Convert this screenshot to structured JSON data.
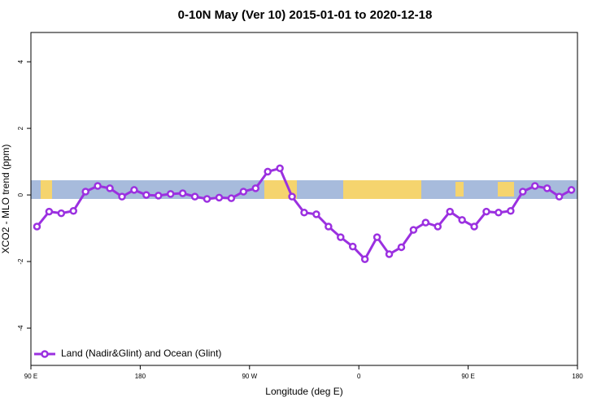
{
  "chart_data": {
    "type": "line",
    "title": "0-10N May (Ver 10)   2015-01-01 to 2020-12-18",
    "x_label": "Longitude (deg E)",
    "y_label": "XCO2 - MLO trend (ppm)",
    "x": [
      95,
      105,
      115,
      125,
      135,
      145,
      155,
      165,
      175,
      185,
      195,
      205,
      215,
      225,
      235,
      245,
      255,
      265,
      275,
      285,
      295,
      305,
      315,
      325,
      335,
      345,
      355,
      365,
      375,
      385,
      395,
      405,
      415,
      425,
      435,
      445,
      455,
      465,
      475,
      485,
      495,
      505,
      515,
      525,
      535
    ],
    "series": [
      {
        "name": "Land (Nadir&Glint) and Ocean (Glint)",
        "color": "#9b30e0",
        "values": [
          -0.95,
          -0.5,
          -0.55,
          -0.48,
          0.1,
          0.27,
          0.2,
          -0.05,
          0.15,
          0.0,
          -0.02,
          0.03,
          0.05,
          -0.05,
          -0.12,
          -0.08,
          -0.1,
          0.1,
          0.2,
          0.7,
          0.8,
          -0.05,
          -0.53,
          -0.58,
          -0.95,
          -1.27,
          -1.55,
          -1.93,
          -1.27,
          -1.78,
          -1.57,
          -1.05,
          -0.83,
          -0.95,
          -0.5,
          -0.75,
          -0.95,
          -0.5,
          -0.53,
          -0.48,
          0.1,
          0.27,
          0.2,
          -0.05,
          0.15
        ]
      }
    ],
    "xlim": [
      90,
      540
    ],
    "xticks": [
      {
        "value": 90,
        "label": "90 E"
      },
      180,
      {
        "value": 270,
        "label": "90 W"
      },
      {
        "value": 360,
        "label": "0"
      },
      {
        "value": 450,
        "label": "90 E"
      },
      {
        "value": 540,
        "label": "180"
      }
    ],
    "ylim": [
      -5.12,
      4.88
    ],
    "yticks": [
      -4,
      -2,
      0,
      2,
      4
    ],
    "legend": "bottom-left"
  }
}
